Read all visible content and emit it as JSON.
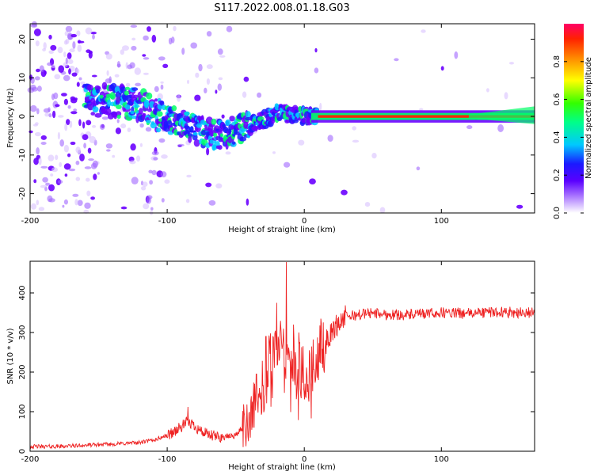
{
  "title": "S117.2022.008.01.18.G03",
  "colors": {
    "snr_line": "#ee2222",
    "spectrogram_background": "#ffffff",
    "colormap": [
      "#ffffff",
      "#d9c2ff",
      "#a066ff",
      "#6a00ff",
      "#1a1aff",
      "#00c8ff",
      "#00ff66",
      "#7cff00",
      "#ffff00",
      "#ff8800",
      "#ff2200",
      "#ff0066"
    ]
  },
  "chart_data": [
    {
      "type": "heatmap",
      "panel": "spectrogram",
      "xlabel": "Height of straight line (km)",
      "ylabel": "Frequency (Hz)",
      "xlim": [
        -200,
        168
      ],
      "ylim": [
        -25,
        24
      ],
      "xticks": [
        -200,
        -100,
        0,
        100
      ],
      "xtick_labels": [
        "-200",
        "-100",
        "0",
        "100"
      ],
      "yticks": [
        -20,
        -10,
        0,
        10,
        20
      ],
      "ytick_labels": [
        "-20",
        "-10",
        "0",
        "10",
        "20"
      ],
      "ridge": [
        {
          "x": -160,
          "y": 4
        },
        {
          "x": -140,
          "y": 4
        },
        {
          "x": -120,
          "y": 3
        },
        {
          "x": -105,
          "y": 0
        },
        {
          "x": -90,
          "y": -2
        },
        {
          "x": -75,
          "y": -4
        },
        {
          "x": -60,
          "y": -5
        },
        {
          "x": -45,
          "y": -3
        },
        {
          "x": -30,
          "y": -1
        },
        {
          "x": -20,
          "y": 1
        },
        {
          "x": -10,
          "y": 0.5
        },
        {
          "x": 0,
          "y": 0.2
        },
        {
          "x": 10,
          "y": 0
        },
        {
          "x": 168,
          "y": 0
        }
      ],
      "colorbar": {
        "label": "Normalized spectral amplitude",
        "range": [
          0,
          1
        ],
        "ticks": [
          0,
          0.2,
          0.4,
          0.6,
          0.8
        ],
        "tick_labels": [
          "0.0",
          "0.2",
          "0.4",
          "0.6",
          "0.8"
        ]
      }
    },
    {
      "type": "line",
      "panel": "snr",
      "xlabel": "Height of straight line (km)",
      "ylabel": "SNR (10 * v/v)",
      "xlim": [
        -200,
        168
      ],
      "ylim": [
        0,
        480
      ],
      "xticks": [
        -200,
        -100,
        0,
        100
      ],
      "xtick_labels": [
        "-200",
        "-100",
        "0",
        "100"
      ],
      "yticks": [
        0,
        100,
        200,
        300,
        400
      ],
      "ytick_labels": [
        "0",
        "100",
        "200",
        "300",
        "400"
      ],
      "series": [
        {
          "x": [
            -200,
            -180,
            -160,
            -140,
            -120,
            -110,
            -100,
            -95,
            -90,
            -85,
            -80,
            -75,
            -70,
            -60,
            -50,
            -45,
            -40,
            -35,
            -30,
            -25,
            -20,
            -17,
            -15,
            -12,
            -10,
            -5,
            0,
            5,
            10,
            15,
            20,
            25,
            30,
            40,
            50,
            60,
            80,
            100,
            120,
            140,
            160,
            168
          ],
          "y": [
            12,
            12,
            15,
            18,
            22,
            28,
            40,
            50,
            60,
            75,
            65,
            50,
            40,
            35,
            40,
            60,
            90,
            130,
            180,
            230,
            260,
            300,
            250,
            240,
            220,
            210,
            200,
            210,
            240,
            270,
            300,
            325,
            340,
            345,
            350,
            345,
            345,
            350,
            348,
            352,
            350,
            350
          ],
          "spikes": [
            {
              "x": -85,
              "y": 112
            },
            {
              "x": -35,
              "y": 195
            },
            {
              "x": -28,
              "y": 290
            },
            {
              "x": -20,
              "y": 375
            },
            {
              "x": -13,
              "y": 478
            },
            {
              "x": -8,
              "y": 320
            },
            {
              "x": -4,
              "y": 300
            },
            {
              "x": 12,
              "y": 335
            }
          ]
        }
      ]
    }
  ]
}
